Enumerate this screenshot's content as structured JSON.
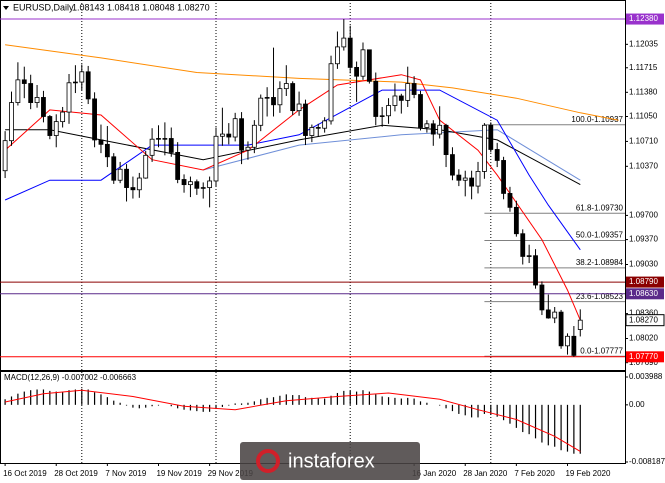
{
  "header": {
    "symbol": "EURUSD,Daily",
    "ohlc": "1.08143 1.08418 1.08048 1.08270"
  },
  "watermark": "instaforex",
  "chart_data": [
    {
      "type": "candlestick",
      "categories": [
        "16 Oct 2019",
        null,
        null,
        null,
        null,
        null,
        null,
        null,
        "28 Oct 2019",
        null,
        null,
        null,
        null,
        null,
        null,
        null,
        "7 Nov 2019",
        null,
        null,
        null,
        null,
        null,
        null,
        null,
        "19 Nov 2019",
        null,
        null,
        null,
        null,
        null,
        null,
        null,
        "29 Nov 2019",
        null,
        null,
        null,
        null,
        null,
        null,
        null,
        null,
        null,
        null,
        null,
        null,
        null,
        null,
        null,
        null,
        null,
        null,
        null,
        null,
        null,
        null,
        null,
        null,
        null,
        null,
        null,
        null,
        null,
        null,
        null,
        "16 Jan 2020",
        null,
        null,
        null,
        null,
        null,
        null,
        null,
        "28 Jan 2020",
        null,
        null,
        null,
        null,
        null,
        null,
        null,
        "7 Feb 2020",
        null,
        null,
        null,
        null,
        null,
        null,
        null,
        "19 Feb 2020",
        null,
        null
      ],
      "open": [
        1.1031,
        1.1072,
        1.1124,
        1.1155,
        1.115,
        1.1124,
        1.1131,
        1.1105,
        1.1079,
        1.1098,
        1.1111,
        1.1151,
        1.1152,
        1.1166,
        1.1129,
        1.1073,
        1.1067,
        1.105,
        1.1018,
        1.1033,
        1.1008,
        1.1005,
        1.1021,
        1.1052,
        1.1074,
        1.1075,
        1.1075,
        1.1056,
        1.1019,
        1.1012,
        1.1016,
        1.1007,
        1.1008,
        1.1017,
        1.1078,
        1.1081,
        1.1077,
        1.1102,
        1.1059,
        1.1063,
        1.1093,
        1.113,
        1.1131,
        1.1121,
        1.1143,
        1.115,
        1.1113,
        1.1122,
        1.1079,
        1.109,
        1.1089,
        1.1099,
        1.1177,
        1.12,
        1.1212,
        1.1172,
        1.116,
        1.1196,
        1.1153,
        1.1105,
        1.1106,
        1.112,
        1.1133,
        1.1127,
        1.115,
        1.1135,
        1.109,
        1.1095,
        1.1081,
        1.1093,
        1.1053,
        1.1025,
        1.1018,
        1.1021,
        1.101,
        1.103,
        1.1093,
        1.106,
        1.1045,
        1.1,
        1.0981,
        1.0945,
        1.0914,
        1.0915,
        1.0875,
        1.0841,
        1.083,
        1.0838,
        1.0792,
        1.0805,
        1.08143
      ],
      "high": [
        1.1085,
        1.1139,
        1.1179,
        1.1173,
        1.1162,
        1.1148,
        1.114,
        1.1107,
        1.1108,
        1.1118,
        1.1163,
        1.1175,
        1.1176,
        1.1174,
        1.1138,
        1.1094,
        1.1092,
        1.1055,
        1.1043,
        1.104,
        1.1023,
        1.1028,
        1.1058,
        1.1089,
        1.1093,
        1.1097,
        1.109,
        1.107,
        1.1026,
        1.1023,
        1.1019,
        1.1015,
        1.1023,
        1.109,
        1.1117,
        1.1096,
        1.111,
        1.1111,
        1.1071,
        1.11,
        1.1135,
        1.1145,
        1.1199,
        1.1153,
        1.1175,
        1.1153,
        1.1139,
        1.1128,
        1.1094,
        1.1095,
        1.1104,
        1.1188,
        1.1221,
        1.1238,
        1.1229,
        1.118,
        1.1206,
        1.1196,
        1.1165,
        1.1118,
        1.113,
        1.115,
        1.1136,
        1.1173,
        1.116,
        1.114,
        1.11,
        1.11,
        1.1119,
        1.1095,
        1.1063,
        1.1033,
        1.1031,
        1.1031,
        1.1043,
        1.1096,
        1.1097,
        1.1069,
        1.105,
        1.1009,
        1.099,
        1.0951,
        1.093,
        1.0924,
        1.088,
        1.0862,
        1.0845,
        1.0841,
        1.0809,
        1.0819,
        1.08418
      ],
      "low": [
        1.1021,
        1.1065,
        1.112,
        1.113,
        1.1115,
        1.1117,
        1.1097,
        1.1074,
        1.1063,
        1.109,
        1.1095,
        1.1137,
        1.1141,
        1.1122,
        1.1063,
        1.1055,
        1.1036,
        1.1013,
        1.1014,
        1.0989,
        1.0993,
        1.0994,
        1.102,
        1.1043,
        1.1063,
        1.1052,
        1.105,
        1.1014,
        1.1001,
        1.0995,
        1.0998,
        1.0993,
        1.0981,
        1.101,
        1.1065,
        1.1067,
        1.1071,
        1.104,
        1.1046,
        1.1055,
        1.1085,
        1.1105,
        1.1105,
        1.111,
        1.1133,
        1.1107,
        1.1106,
        1.1066,
        1.107,
        1.1077,
        1.1083,
        1.1094,
        1.117,
        1.1195,
        1.1164,
        1.1125,
        1.1155,
        1.115,
        1.1093,
        1.1091,
        1.1095,
        1.1112,
        1.1109,
        1.1118,
        1.113,
        1.1086,
        1.1083,
        1.1065,
        1.1075,
        1.1036,
        1.1018,
        1.101,
        1.0996,
        1.0992,
        1.1,
        1.102,
        1.1056,
        1.1036,
        1.0992,
        1.0975,
        1.0941,
        1.0903,
        1.0905,
        1.087,
        1.0834,
        1.0829,
        1.0823,
        1.0788,
        1.078,
        1.0777,
        1.08048
      ],
      "close": [
        1.1072,
        1.1124,
        1.1155,
        1.115,
        1.1124,
        1.1131,
        1.1105,
        1.1079,
        1.1098,
        1.1111,
        1.1151,
        1.1152,
        1.1166,
        1.1129,
        1.1073,
        1.1067,
        1.105,
        1.1018,
        1.1033,
        1.1008,
        1.1005,
        1.1021,
        1.1052,
        1.1074,
        1.1075,
        1.1075,
        1.1056,
        1.1019,
        1.1012,
        1.1016,
        1.1007,
        1.1008,
        1.1017,
        1.1078,
        1.1081,
        1.1077,
        1.1102,
        1.1059,
        1.1063,
        1.1093,
        1.113,
        1.1131,
        1.1121,
        1.1143,
        1.115,
        1.1113,
        1.1122,
        1.1079,
        1.109,
        1.1089,
        1.1099,
        1.1177,
        1.12,
        1.1212,
        1.1172,
        1.116,
        1.1196,
        1.1153,
        1.1105,
        1.1106,
        1.112,
        1.1133,
        1.1127,
        1.115,
        1.1135,
        1.109,
        1.1095,
        1.1081,
        1.1093,
        1.1053,
        1.1025,
        1.1018,
        1.1021,
        1.101,
        1.103,
        1.1093,
        1.106,
        1.1045,
        1.1,
        1.0981,
        1.0945,
        1.0914,
        1.0915,
        1.0875,
        1.0841,
        1.083,
        1.0838,
        1.0792,
        1.0805,
        1.0779,
        1.0827
      ],
      "up_color": "#ffffff",
      "down_color": "#000000",
      "outline_color": "#000000",
      "xlim": [
        -0.8,
        97
      ],
      "ylim": [
        1.0759,
        1.1264
      ],
      "yticks": [
        1.12035,
        1.11715,
        {
          "value": 1.1138,
          "label": "1.11380"
        },
        {
          "value": 1.1105,
          "label": "1.11050"
        },
        {
          "value": 1.1071,
          "label": "1.10710"
        },
        {
          "value": 1.1037,
          "label": "1.10370"
        },
        {
          "value": 1.097,
          "label": "1.09700"
        },
        {
          "value": 1.0937,
          "label": "1.09370"
        },
        {
          "value": 1.0903,
          "label": "1.09030"
        },
        {
          "value": 1.0836,
          "label": "1.08360"
        },
        {
          "value": 1.0802,
          "label": "1.08020"
        },
        {
          "value": 1.0769,
          "label": "1.07690"
        }
      ],
      "series": [
        {
          "color": "#ff8c00",
          "x": [
            0,
            15,
            30,
            46,
            62,
            70,
            80,
            90,
            96
          ],
          "values": [
            1.1203,
            1.1185,
            1.1165,
            1.1157,
            1.1152,
            1.1144,
            1.113,
            1.111,
            1.11
          ]
        },
        {
          "color": "#6f8fd8",
          "x": [
            31,
            46,
            62,
            77,
            90
          ],
          "values": [
            1.1032,
            1.1066,
            1.108,
            1.1087,
            1.1018
          ]
        },
        {
          "color": "#000000",
          "x": [
            0,
            7,
            15,
            31,
            46,
            59,
            68,
            77,
            90
          ],
          "values": [
            1.1087,
            1.1087,
            1.1073,
            1.1046,
            1.1073,
            1.1093,
            1.1087,
            1.1073,
            1.1012
          ]
        },
        {
          "color": "#0000ff",
          "x": [
            0,
            7,
            15,
            23,
            38,
            46,
            59,
            68,
            77,
            82,
            85,
            90
          ],
          "values": [
            1.0991,
            1.1018,
            1.1018,
            1.1066,
            1.1066,
            1.108,
            1.1141,
            1.1141,
            1.11,
            1.1025,
            1.0984,
            1.0923
          ]
        },
        {
          "color": "#ff0000",
          "x": [
            0,
            7,
            15,
            23,
            31,
            38,
            46,
            52,
            62,
            65,
            68,
            74,
            77,
            84,
            88,
            90
          ],
          "values": [
            1.1059,
            1.1114,
            1.1107,
            1.1046,
            1.1032,
            1.1059,
            1.1114,
            1.1148,
            1.1162,
            1.1155,
            1.11,
            1.1059,
            1.1025,
            1.0937,
            1.0868,
            1.0827
          ]
        }
      ],
      "levels": [
        {
          "value": 1.1238,
          "label": "1.12380",
          "color": "#9932cc"
        },
        {
          "value": 1.0879,
          "label": "1.08790",
          "color": "#8b0000"
        },
        {
          "value": 1.0863,
          "label": "1.08630",
          "color": "#5a2a8a"
        },
        {
          "value": 1.0777,
          "label": "1.07770",
          "color": "#ff0000"
        }
      ],
      "current_price": {
        "value": 1.0827,
        "label": "1.08270"
      },
      "fibonacci": [
        {
          "value": 1.10937,
          "label": "100.0-1.10937"
        },
        {
          "value": 1.0973,
          "label": "61.8-1.09730"
        },
        {
          "value": 1.09357,
          "label": "50.0-1.09357"
        },
        {
          "value": 1.08984,
          "label": "38.2-1.08984"
        },
        {
          "value": 1.08523,
          "label": "23.6-1.08523"
        },
        {
          "value": 1.07777,
          "label": "0.0-1.07777"
        }
      ],
      "fibonacci_start": 75,
      "period_separators": [
        12,
        33,
        54,
        76
      ]
    },
    {
      "type": "macd",
      "title": "MACD(12,26,9) -0.007002 -0.006663",
      "ylim": [
        -0.008187,
        0.003988
      ],
      "yticks": [
        0.003988,
        {
          "value": 0,
          "label": "0.00"
        },
        -0.008187
      ],
      "series": [
        {
          "color": "#000000",
          "values": [
            0.0008,
            0.0012,
            0.0016,
            0.0019,
            0.0021,
            0.0022,
            0.0022,
            0.002,
            0.0019,
            0.0019,
            0.0021,
            0.0022,
            0.0023,
            0.0022,
            0.0018,
            0.0015,
            0.0011,
            0.0006,
            0.0003,
            -0.0001,
            -0.0004,
            -0.0005,
            -0.0004,
            -0.0002,
            -0.0001,
            0,
            -0.0002,
            -0.0005,
            -0.0007,
            -0.0008,
            -0.0009,
            -0.001,
            -0.001,
            -0.0006,
            -0.0003,
            -0.0001,
            0.0002,
            0.0002,
            0.0003,
            0.0005,
            0.0008,
            0.001,
            0.0011,
            0.0013,
            0.0015,
            0.0014,
            0.0014,
            0.0011,
            0.001,
            0.0009,
            0.0009,
            0.0013,
            0.0017,
            0.002,
            0.002,
            0.0019,
            0.0021,
            0.0019,
            0.0015,
            0.0012,
            0.0011,
            0.001,
            0.0009,
            0.001,
            0.0009,
            0.0005,
            0.0003,
            0,
            -0.0001,
            -0.0005,
            -0.0009,
            -0.0013,
            -0.0015,
            -0.0018,
            -0.0018,
            -0.0013,
            -0.0014,
            -0.0017,
            -0.0022,
            -0.0027,
            -0.0033,
            -0.0039,
            -0.0042,
            -0.0048,
            -0.0054,
            -0.0058,
            -0.006,
            -0.0065,
            -0.0067,
            -0.007,
            -0.007002
          ]
        },
        {
          "color": "#ff0000",
          "x": [
            0,
            6,
            12,
            20,
            28,
            36,
            44,
            52,
            60,
            68,
            74,
            80,
            86,
            90
          ],
          "values": [
            0.0004,
            0.0016,
            0.0021,
            0.0012,
            -0.0002,
            -0.0007,
            0.0006,
            0.0012,
            0.0017,
            0.0008,
            -0.0007,
            -0.0021,
            -0.0045,
            -0.006663
          ]
        }
      ]
    }
  ]
}
